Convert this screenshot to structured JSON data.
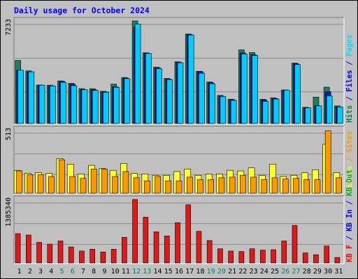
{
  "chart_data": [
    {
      "type": "bar",
      "title": "Daily usage for October 2024",
      "panel": "top",
      "ymax_label": "7233",
      "ylim": [
        0,
        7233
      ],
      "right_legend": [
        {
          "text": "Hits",
          "color": "#00805c"
        },
        {
          "text": " / ",
          "color": "#0000ff"
        },
        {
          "text": "Files",
          "color": "#0000ff"
        },
        {
          "text": " / ",
          "color": "#0000ff"
        },
        {
          "text": "Pages",
          "color": "#00e0ff"
        }
      ],
      "categories": [
        "1",
        "2",
        "3",
        "4",
        "5",
        "6",
        "7",
        "8",
        "9",
        "10",
        "11",
        "12",
        "13",
        "14",
        "15",
        "16",
        "17",
        "18",
        "19",
        "20",
        "21",
        "22",
        "23",
        "24",
        "25",
        "26",
        "27",
        "28",
        "29",
        "30",
        "31"
      ],
      "weekend_days": [
        "5",
        "6",
        "12",
        "13",
        "19",
        "20",
        "26",
        "27"
      ],
      "series": [
        {
          "name": "Hits",
          "color": "#1f7f5f",
          "values": [
            4450,
            3710,
            2710,
            2700,
            3000,
            2830,
            2460,
            2450,
            2270,
            2780,
            3240,
            7233,
            4990,
            3980,
            3180,
            4350,
            6310,
            3680,
            2930,
            1980,
            1710,
            5190,
            5000,
            1710,
            1810,
            2360,
            4260,
            1140,
            1860,
            2560,
            1240
          ]
        },
        {
          "name": "Files",
          "color": "#1a1aaa",
          "values": [
            3750,
            3640,
            2700,
            2650,
            2980,
            2770,
            2390,
            2380,
            2230,
            2590,
            3200,
            6800,
            4950,
            3920,
            3130,
            4300,
            6270,
            3660,
            2870,
            1920,
            1670,
            4980,
            4850,
            1650,
            1760,
            2360,
            4200,
            1120,
            1250,
            2240,
            1170
          ]
        },
        {
          "name": "Pages",
          "color": "#00ccff",
          "values": [
            3750,
            3640,
            2700,
            2650,
            2900,
            2660,
            2380,
            2330,
            2200,
            2550,
            3160,
            7000,
            4940,
            3870,
            3100,
            4280,
            6240,
            3540,
            2800,
            1900,
            1630,
            4900,
            4800,
            1560,
            1720,
            2350,
            4150,
            1100,
            1240,
            1950,
            1160
          ]
        }
      ]
    },
    {
      "type": "bar",
      "panel": "middle",
      "ymax_label": "513",
      "ylim": [
        0,
        513
      ],
      "right_legend": [
        {
          "text": "Visits",
          "color": "#ffff00"
        },
        {
          "text": " / ",
          "color": "#ff9900"
        },
        {
          "text": "Sites",
          "color": "#ff9900"
        }
      ],
      "series": [
        {
          "name": "Visits",
          "color": "#ffff33",
          "values": [
            185,
            160,
            165,
            160,
            280,
            235,
            155,
            225,
            200,
            185,
            240,
            160,
            155,
            145,
            145,
            175,
            195,
            145,
            155,
            155,
            185,
            180,
            205,
            145,
            235,
            135,
            145,
            165,
            190,
            395,
            165
          ]
        },
        {
          "name": "Sites",
          "color": "#ff9900",
          "values": [
            180,
            150,
            150,
            135,
            270,
            135,
            120,
            195,
            195,
            135,
            175,
            125,
            100,
            135,
            100,
            100,
            130,
            110,
            110,
            125,
            130,
            145,
            130,
            110,
            125,
            115,
            120,
            110,
            110,
            505,
            125
          ]
        }
      ]
    },
    {
      "type": "bar",
      "panel": "bottom",
      "ymax_label": "1385340",
      "ylim": [
        0,
        1385340
      ],
      "right_legend": [
        {
          "text": "KB F",
          "color": "#ff0000"
        },
        {
          "text": " / ",
          "color": "#0000ff"
        },
        {
          "text": "KB In",
          "color": "#0000ff"
        },
        {
          "text": " / ",
          "color": "#0000ff"
        },
        {
          "text": "KB Out",
          "color": "#00aa44"
        }
      ],
      "series": [
        {
          "name": "KB F",
          "color": "#e01818",
          "values": [
            640000,
            610000,
            450000,
            410000,
            480000,
            350000,
            260000,
            300000,
            240000,
            300000,
            560000,
            1385340,
            1000000,
            680000,
            590000,
            880000,
            1270000,
            690000,
            490000,
            310000,
            260000,
            250000,
            310000,
            280000,
            290000,
            480000,
            820000,
            220000,
            180000,
            370000,
            120000
          ]
        }
      ]
    }
  ]
}
